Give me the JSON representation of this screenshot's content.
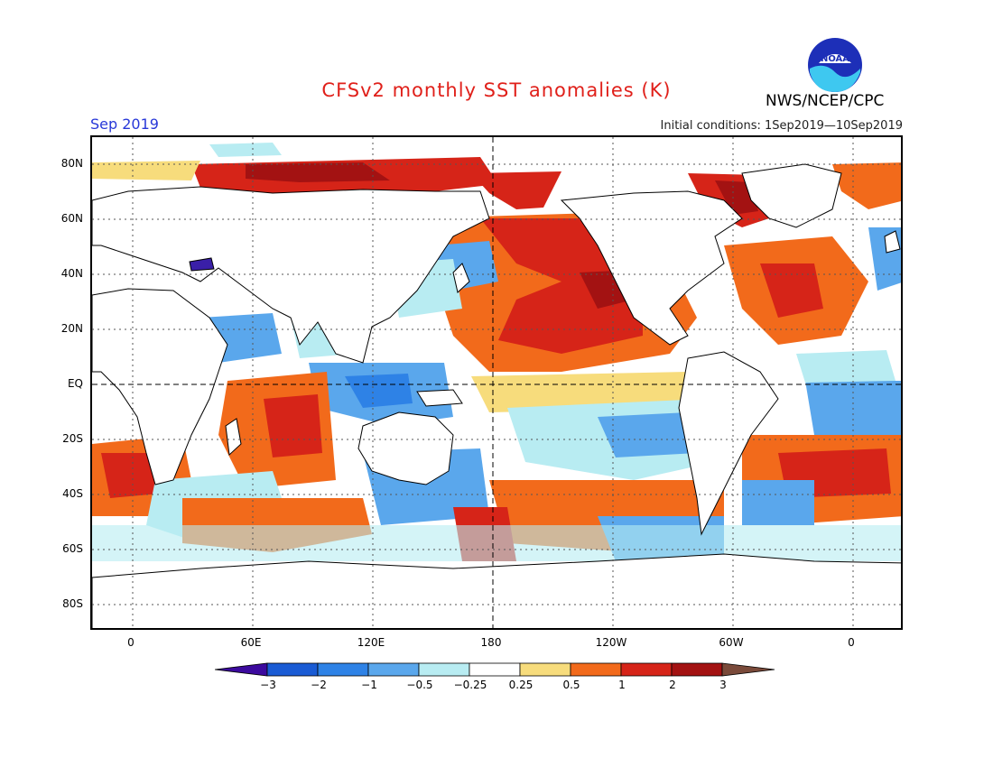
{
  "header": {
    "title": "CFSv2 monthly SST anomalies (K)",
    "period": "Sep 2019",
    "initial_conditions": "Initial conditions: 1Sep2019—10Sep2019",
    "agency": "NWS/NCEP/CPC",
    "logo_text": "NOAA"
  },
  "map": {
    "lat_labels": [
      "80N",
      "60N",
      "40N",
      "20N",
      "EQ",
      "20S",
      "40S",
      "60S",
      "80S"
    ],
    "lon_labels": [
      "0",
      "60E",
      "120E",
      "180",
      "120W",
      "60W",
      "0"
    ],
    "colors": {
      "pos3": "#a31212",
      "pos2": "#d62418",
      "pos1": "#f26a1b",
      "pos05": "#f7dc7c",
      "neg025": "#b8ecf2",
      "neg05": "#5aa7ec",
      "neg1": "#2e82e6",
      "neg2": "#1a5bd4",
      "neg3": "#3a1fa8",
      "land": "#ffffff",
      "coast": "#000000",
      "ocean_neutral": "#ffffff"
    }
  },
  "colorbar": {
    "labels": [
      "−3",
      "−2",
      "−1",
      "−0.5",
      "−0.25",
      "0.25",
      "0.5",
      "1",
      "2",
      "3"
    ],
    "colors": [
      "#3c0a9e",
      "#1a5bd4",
      "#2e82e6",
      "#5aa7ec",
      "#b8ecf2",
      "#ffffff",
      "#f7dc7c",
      "#f26a1b",
      "#d62418",
      "#a31212",
      "#7a4a3a"
    ]
  }
}
